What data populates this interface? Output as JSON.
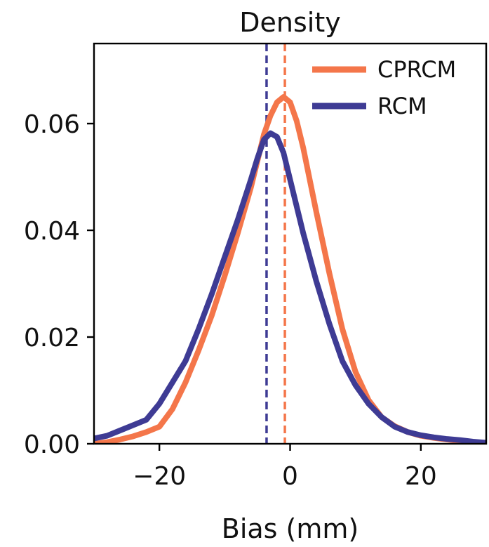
{
  "chart_data": {
    "type": "line",
    "title": "Density",
    "xlabel": "Bias (mm)",
    "ylabel": "",
    "xlim": [
      -30,
      30
    ],
    "ylim": [
      0,
      0.075
    ],
    "x_ticks": [
      -20,
      0,
      20
    ],
    "x_tick_labels": [
      "−20",
      "0",
      "20"
    ],
    "y_ticks": [
      0.0,
      0.02,
      0.04,
      0.06
    ],
    "y_tick_labels": [
      "0.00",
      "0.02",
      "0.04",
      "0.06"
    ],
    "grid": false,
    "legend_position": "top-right",
    "series": [
      {
        "name": "CPRCM",
        "color": "#f4764a",
        "mean": -0.8,
        "x": [
          -30,
          -28,
          -26,
          -24,
          -22,
          -20,
          -18,
          -16,
          -14,
          -12,
          -10,
          -8,
          -6,
          -5,
          -4,
          -3,
          -2,
          -1,
          0,
          1,
          2,
          3,
          4,
          6,
          8,
          10,
          12,
          14,
          16,
          18,
          20,
          22,
          24,
          26,
          28,
          30
        ],
        "y": [
          0.0,
          0.0003,
          0.0008,
          0.0014,
          0.0022,
          0.0032,
          0.0065,
          0.0115,
          0.0175,
          0.024,
          0.0315,
          0.0395,
          0.048,
          0.053,
          0.058,
          0.0615,
          0.064,
          0.065,
          0.064,
          0.0605,
          0.0555,
          0.0495,
          0.0435,
          0.032,
          0.0215,
          0.0135,
          0.0082,
          0.005,
          0.0033,
          0.0022,
          0.0015,
          0.0011,
          0.0008,
          0.0005,
          0.0003,
          0.0001
        ]
      },
      {
        "name": "RCM",
        "color": "#3e3b94",
        "mean": -3.6,
        "x": [
          -30,
          -28,
          -26,
          -24,
          -22,
          -20,
          -18,
          -16,
          -14,
          -12,
          -10,
          -8,
          -6,
          -5,
          -4,
          -3,
          -2,
          -1,
          0,
          1,
          2,
          4,
          6,
          8,
          10,
          12,
          14,
          16,
          18,
          20,
          22,
          24,
          26,
          28,
          30
        ],
        "y": [
          0.001,
          0.0015,
          0.0025,
          0.0035,
          0.0045,
          0.0075,
          0.0115,
          0.0155,
          0.0215,
          0.028,
          0.035,
          0.042,
          0.0495,
          0.0535,
          0.057,
          0.0582,
          0.0575,
          0.0545,
          0.0495,
          0.0445,
          0.0395,
          0.0305,
          0.0225,
          0.0155,
          0.011,
          0.0075,
          0.005,
          0.0032,
          0.0022,
          0.0016,
          0.0012,
          0.0009,
          0.0007,
          0.0004,
          0.0002
        ]
      }
    ]
  }
}
